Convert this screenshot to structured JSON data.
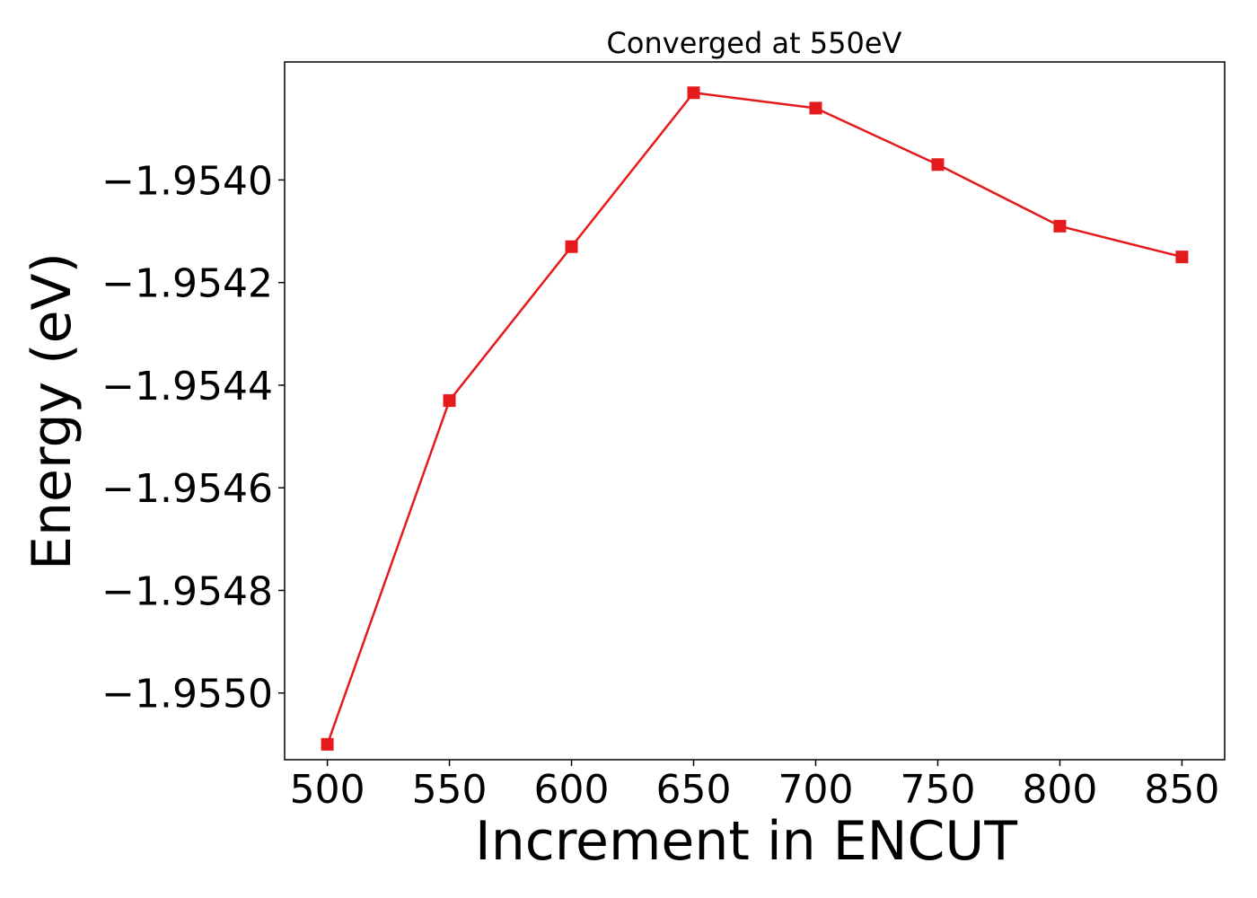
{
  "chart_data": {
    "type": "line",
    "title": "Converged at 550eV",
    "xlabel": "Increment in ENCUT",
    "ylabel": "Energy (eV)",
    "x": [
      500,
      550,
      600,
      650,
      700,
      750,
      800,
      850
    ],
    "series": [
      {
        "values": [
          -1.9551,
          -1.95443,
          -1.95413,
          -1.95383,
          -1.95386,
          -1.95397,
          -1.95409,
          -1.95415
        ],
        "color": "#e41a1c",
        "marker": "square"
      }
    ],
    "xlim": [
      482.5,
      867.5
    ],
    "ylim": [
      -1.95513,
      -1.95377
    ],
    "xticks": [
      500,
      550,
      600,
      650,
      700,
      750,
      800,
      850
    ],
    "xtick_labels": [
      "500",
      "550",
      "600",
      "650",
      "700",
      "750",
      "800",
      "850"
    ],
    "yticks": [
      -1.955,
      -1.9548,
      -1.9546,
      -1.9544,
      -1.9542,
      -1.954
    ],
    "ytick_labels": [
      "−1.9550",
      "−1.9548",
      "−1.9546",
      "−1.9544",
      "−1.9542",
      "−1.9540"
    ],
    "grid": false,
    "legend": false
  }
}
